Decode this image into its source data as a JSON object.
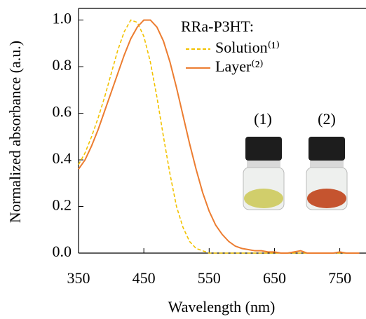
{
  "chart_data": {
    "type": "line",
    "x_label": "Wavelength (nm)",
    "y_label": "Normalized absorbance (a.u.)",
    "legend_title": "RRa-P3HT:",
    "legend": "upper right",
    "annotations": [
      "(1)",
      "(2)"
    ],
    "x": [
      350,
      360,
      370,
      380,
      390,
      400,
      410,
      420,
      430,
      440,
      450,
      460,
      470,
      480,
      490,
      500,
      510,
      520,
      530,
      540,
      550,
      560,
      570,
      580,
      590,
      600,
      610,
      620,
      630,
      640,
      650,
      660,
      670,
      680,
      690,
      700,
      710,
      720,
      730,
      740,
      750,
      760,
      770,
      780
    ],
    "series": [
      {
        "name": "Solution⁽¹⁾",
        "color": "#f2c200",
        "dashed": true,
        "values": [
          0.38,
          0.43,
          0.5,
          0.58,
          0.67,
          0.77,
          0.87,
          0.95,
          1.0,
          0.99,
          0.93,
          0.82,
          0.67,
          0.5,
          0.34,
          0.2,
          0.11,
          0.05,
          0.02,
          0.01,
          0,
          0,
          0,
          0,
          0,
          0,
          0,
          0,
          0,
          0,
          0,
          0,
          0,
          0,
          0,
          0,
          0,
          0,
          0,
          0,
          0,
          0,
          0,
          0
        ]
      },
      {
        "name": "Layer⁽²⁾",
        "color": "#ec7d31",
        "dashed": false,
        "values": [
          0.36,
          0.4,
          0.46,
          0.53,
          0.61,
          0.69,
          0.77,
          0.85,
          0.92,
          0.97,
          1.0,
          1.0,
          0.97,
          0.91,
          0.82,
          0.71,
          0.59,
          0.47,
          0.36,
          0.26,
          0.18,
          0.12,
          0.08,
          0.05,
          0.03,
          0.02,
          0.015,
          0.01,
          0.01,
          0.005,
          0.005,
          0,
          0,
          0.005,
          0.01,
          0,
          0,
          0,
          0,
          0,
          0.005,
          0,
          0,
          0
        ]
      }
    ],
    "xlim": [
      350,
      788
    ],
    "ylim": [
      0,
      1.05
    ],
    "xticks": [
      350,
      450,
      550,
      650,
      750
    ],
    "yticks": [
      {
        "value": 0,
        "label": "0.0"
      },
      0.2,
      0.4,
      0.6,
      0.8,
      {
        "value": 1,
        "label": "1.0"
      }
    ]
  }
}
